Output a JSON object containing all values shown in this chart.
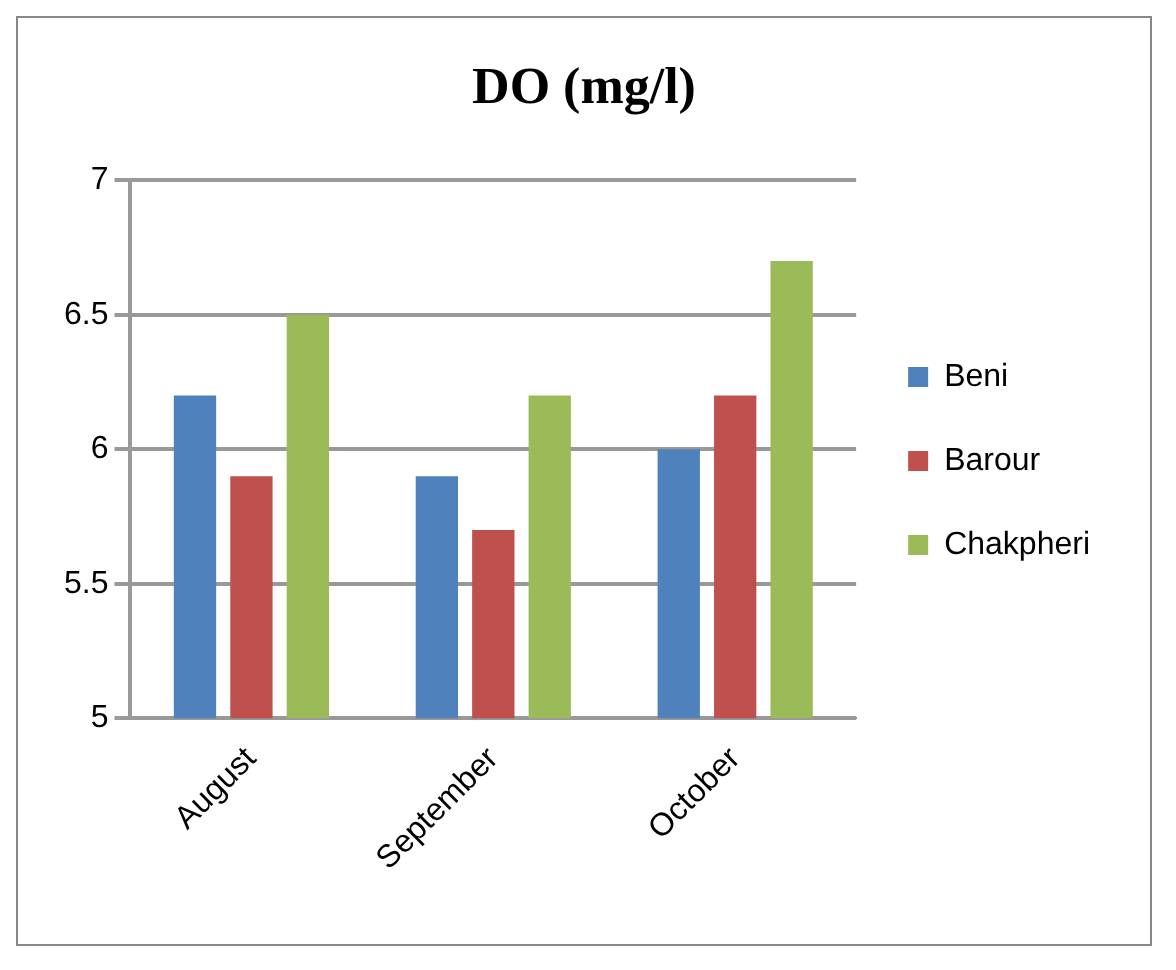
{
  "chart_data": {
    "type": "bar",
    "title": "DO (mg/l)",
    "categories": [
      "August",
      "September",
      "October"
    ],
    "series": [
      {
        "name": "Beni",
        "color": "#4f81bd",
        "values": [
          6.2,
          5.9,
          6.0
        ]
      },
      {
        "name": "Barour",
        "color": "#c0504d",
        "values": [
          5.9,
          5.7,
          6.2
        ]
      },
      {
        "name": "Chakpheri",
        "color": "#9bbb59",
        "values": [
          6.5,
          6.2,
          6.7
        ]
      }
    ],
    "ylim": [
      5,
      7
    ],
    "yticks": [
      5,
      5.5,
      6,
      6.5,
      7
    ],
    "grid": "y",
    "legend": "right"
  }
}
